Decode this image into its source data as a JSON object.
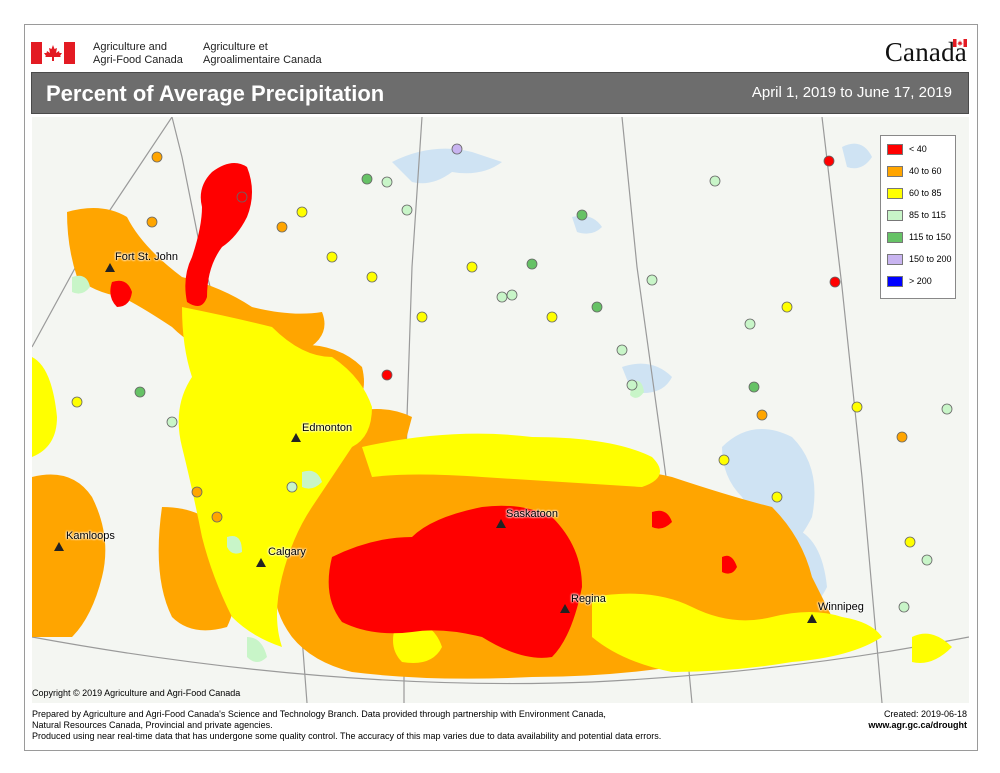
{
  "header": {
    "agency_en_1": "Agriculture and",
    "agency_en_2": "Agri-Food Canada",
    "agency_fr_1": "Agriculture et",
    "agency_fr_2": "Agroalimentaire Canada",
    "wordmark": "Canada"
  },
  "title": {
    "main": "Percent of Average Precipitation",
    "dates": "April 1, 2019 to June 17, 2019"
  },
  "legend": [
    {
      "label": "< 40",
      "color": "#ff0000"
    },
    {
      "label": "40 to 60",
      "color": "#ffa500"
    },
    {
      "label": "60 to 85",
      "color": "#ffff00"
    },
    {
      "label": "85 to 115",
      "color": "#c8f5c8"
    },
    {
      "label": "115 to 150",
      "color": "#66c266"
    },
    {
      "label": "150 to 200",
      "color": "#c8b4f0"
    },
    {
      "label": "> 200",
      "color": "#0000ff"
    }
  ],
  "cities": [
    {
      "name": "Fort St. John"
    },
    {
      "name": "Edmonton"
    },
    {
      "name": "Kamloops"
    },
    {
      "name": "Calgary"
    },
    {
      "name": "Saskatoon"
    },
    {
      "name": "Regina"
    },
    {
      "name": "Winnipeg"
    }
  ],
  "copyright": "Copyright © 2019 Agriculture and Agri-Food Canada",
  "footer": {
    "line1": "Prepared by Agriculture and Agri-Food Canada's Science and Technology Branch. Data provided through partnership with Environment Canada,",
    "line2": "Natural Resources Canada, Provincial and private agencies.",
    "line3": "Produced using near real-time data that has undergone some quality control. The accuracy of this map varies due to data availability and potential data errors.",
    "created": "Created: 2019-06-18",
    "url": "www.agr.gc.ca/drought"
  }
}
